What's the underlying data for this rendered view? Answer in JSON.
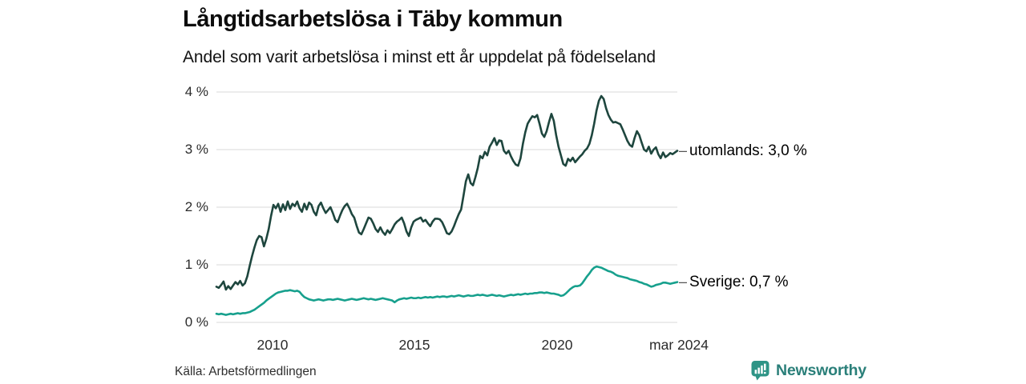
{
  "header": {
    "title": "Långtidsarbetslösa i Täby kommun",
    "subtitle": "Andel som varit arbetslösa i minst ett år uppdelat på födelseland"
  },
  "footer": {
    "source": "Källa: Arbetsförmedlingen",
    "brand": "Newsworthy",
    "brand_icon": "bar-chart-speech-bubble-icon"
  },
  "colors": {
    "series_utomlands": "#1e463e",
    "series_sverige": "#17a08d",
    "gridline": "#e6e6e6",
    "axis_text": "#2b2b2b",
    "brand_teal": "#2e9486",
    "brand_text": "#2a7f79"
  },
  "chart_data": {
    "type": "line",
    "title": "Långtidsarbetslösa i Täby kommun",
    "subtitle": "Andel som varit arbetslösa i minst ett år uppdelat på födelseland",
    "x_unit": "month",
    "x_start": "jan 2008",
    "x_end": "mar 2024",
    "ylim": [
      0,
      4
    ],
    "grid": true,
    "y_ticks": [
      {
        "value": 4,
        "label": "4 %"
      },
      {
        "value": 3,
        "label": "3 %"
      },
      {
        "value": 2,
        "label": "2 %"
      },
      {
        "value": 1,
        "label": "1 %"
      },
      {
        "value": 0,
        "label": "0 %"
      }
    ],
    "x_ticks": [
      {
        "label": "2010",
        "month_index": 24
      },
      {
        "label": "2015",
        "month_index": 84
      },
      {
        "label": "2020",
        "month_index": 144
      },
      {
        "label": "mar 2024",
        "month_index": 194
      }
    ],
    "legend_position": "right-of-line-end",
    "series": [
      {
        "name": "utomlands",
        "label": "utomlands: 3,0 %",
        "dash": "–",
        "last_value": 3.0,
        "color": "#1e463e",
        "values": [
          0.62,
          0.6,
          0.65,
          0.71,
          0.57,
          0.63,
          0.58,
          0.64,
          0.7,
          0.66,
          0.72,
          0.64,
          0.68,
          0.8,
          0.98,
          1.15,
          1.3,
          1.43,
          1.5,
          1.48,
          1.32,
          1.45,
          1.62,
          1.85,
          2.04,
          1.98,
          2.06,
          1.92,
          2.05,
          1.95,
          2.1,
          1.97,
          2.06,
          2.02,
          2.1,
          1.98,
          1.92,
          2.06,
          1.96,
          2.08,
          2.04,
          1.92,
          1.86,
          2.02,
          2.08,
          1.98,
          1.9,
          1.95,
          2.0,
          1.9,
          1.78,
          1.74,
          1.85,
          1.95,
          2.02,
          2.06,
          1.98,
          1.88,
          1.82,
          1.68,
          1.56,
          1.53,
          1.62,
          1.72,
          1.82,
          1.8,
          1.72,
          1.62,
          1.57,
          1.65,
          1.57,
          1.52,
          1.6,
          1.55,
          1.62,
          1.7,
          1.75,
          1.78,
          1.82,
          1.72,
          1.58,
          1.5,
          1.65,
          1.75,
          1.78,
          1.8,
          1.82,
          1.75,
          1.78,
          1.72,
          1.67,
          1.75,
          1.8,
          1.8,
          1.79,
          1.74,
          1.65,
          1.55,
          1.53,
          1.58,
          1.67,
          1.78,
          1.88,
          1.96,
          2.2,
          2.45,
          2.57,
          2.42,
          2.38,
          2.52,
          2.68,
          2.89,
          2.85,
          2.96,
          2.9,
          3.05,
          3.12,
          3.2,
          3.08,
          3.16,
          3.15,
          2.98,
          2.93,
          2.98,
          2.88,
          2.8,
          2.74,
          2.72,
          2.85,
          3.1,
          3.3,
          3.45,
          3.52,
          3.58,
          3.56,
          3.6,
          3.45,
          3.28,
          3.22,
          3.32,
          3.48,
          3.62,
          3.5,
          3.25,
          3.05,
          2.9,
          2.75,
          2.72,
          2.84,
          2.8,
          2.86,
          2.78,
          2.83,
          2.88,
          2.92,
          2.98,
          3.02,
          3.1,
          3.25,
          3.45,
          3.68,
          3.85,
          3.93,
          3.88,
          3.72,
          3.6,
          3.52,
          3.47,
          3.48,
          3.46,
          3.44,
          3.35,
          3.25,
          3.15,
          3.08,
          3.05,
          3.2,
          3.32,
          3.25,
          3.12,
          3.0,
          2.97,
          3.05,
          2.93,
          3.0,
          3.04,
          2.92,
          2.85,
          2.95,
          2.87,
          2.9,
          2.94,
          2.92,
          2.95,
          2.98
        ]
      },
      {
        "name": "Sverige",
        "label": "Sverige: 0,7 %",
        "dash": "–",
        "last_value": 0.7,
        "color": "#17a08d",
        "values": [
          0.15,
          0.14,
          0.15,
          0.14,
          0.13,
          0.14,
          0.15,
          0.14,
          0.15,
          0.16,
          0.15,
          0.16,
          0.16,
          0.17,
          0.18,
          0.2,
          0.22,
          0.25,
          0.28,
          0.31,
          0.34,
          0.38,
          0.41,
          0.44,
          0.47,
          0.5,
          0.52,
          0.53,
          0.54,
          0.55,
          0.55,
          0.56,
          0.55,
          0.54,
          0.55,
          0.53,
          0.48,
          0.44,
          0.42,
          0.4,
          0.39,
          0.38,
          0.39,
          0.4,
          0.39,
          0.38,
          0.39,
          0.4,
          0.4,
          0.39,
          0.4,
          0.41,
          0.4,
          0.39,
          0.38,
          0.39,
          0.4,
          0.41,
          0.4,
          0.39,
          0.4,
          0.41,
          0.42,
          0.41,
          0.4,
          0.41,
          0.4,
          0.39,
          0.4,
          0.41,
          0.42,
          0.41,
          0.4,
          0.39,
          0.38,
          0.35,
          0.38,
          0.4,
          0.41,
          0.42,
          0.41,
          0.42,
          0.43,
          0.42,
          0.42,
          0.43,
          0.42,
          0.43,
          0.44,
          0.43,
          0.44,
          0.43,
          0.44,
          0.45,
          0.44,
          0.45,
          0.45,
          0.44,
          0.45,
          0.46,
          0.45,
          0.46,
          0.47,
          0.46,
          0.45,
          0.46,
          0.47,
          0.46,
          0.46,
          0.47,
          0.48,
          0.47,
          0.48,
          0.47,
          0.46,
          0.47,
          0.48,
          0.47,
          0.46,
          0.47,
          0.46,
          0.45,
          0.46,
          0.47,
          0.48,
          0.47,
          0.48,
          0.49,
          0.48,
          0.49,
          0.5,
          0.49,
          0.5,
          0.5,
          0.51,
          0.51,
          0.52,
          0.52,
          0.51,
          0.52,
          0.51,
          0.5,
          0.5,
          0.49,
          0.48,
          0.46,
          0.47,
          0.5,
          0.54,
          0.58,
          0.61,
          0.63,
          0.63,
          0.64,
          0.68,
          0.74,
          0.8,
          0.85,
          0.91,
          0.95,
          0.97,
          0.96,
          0.95,
          0.93,
          0.91,
          0.89,
          0.88,
          0.86,
          0.83,
          0.81,
          0.8,
          0.79,
          0.78,
          0.77,
          0.75,
          0.74,
          0.73,
          0.72,
          0.7,
          0.69,
          0.67,
          0.66,
          0.64,
          0.62,
          0.63,
          0.65,
          0.66,
          0.67,
          0.69,
          0.69,
          0.68,
          0.67,
          0.68,
          0.69,
          0.7
        ]
      }
    ]
  }
}
